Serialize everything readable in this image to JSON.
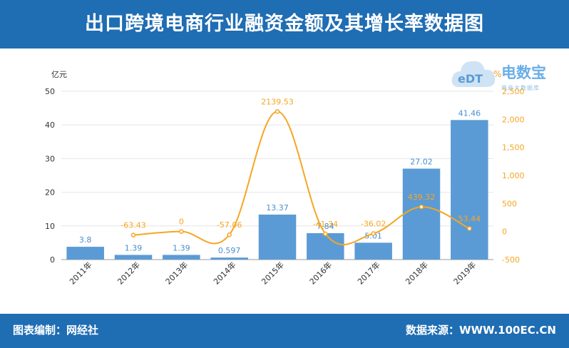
{
  "title": "出口跨境电商行业融资金额及其增长率数据图",
  "unit_left": "亿元",
  "unit_right": "%",
  "footer": {
    "left": "图表编制：网经社",
    "right": "数据来源：WWW.100EC.CN"
  },
  "logo": {
    "icon_text": "eDT",
    "brand": "电数宝",
    "tagline": "电商大数据库",
    "icon_name": "cloud-logo-icon"
  },
  "colors": {
    "header": "#1f6db3",
    "bar": "#5b9bd5",
    "line": "#f5a623"
  },
  "chart_data": {
    "type": "bar",
    "categories": [
      "2011年",
      "2012年",
      "2013年",
      "2014年",
      "2015年",
      "2016年",
      "2017年",
      "2018年",
      "2019年"
    ],
    "series": [
      {
        "values": [
          3.8,
          1.39,
          1.39,
          0.597,
          13.37,
          7.84,
          5.01,
          27.02,
          41.46
        ],
        "labels": [
          "3.8",
          "1.39",
          "1.39",
          "0.597",
          "13.37",
          "7.84",
          "5.01",
          "27.02",
          "41.46"
        ]
      },
      {
        "type": "line",
        "axis": "right",
        "values": [
          null,
          -63.43,
          0,
          -57.06,
          2139.53,
          -41.34,
          -36.02,
          439.32,
          53.44
        ],
        "labels": [
          "",
          "-63.43",
          "0",
          "-57.06",
          "2139.53",
          "-41.34",
          "-36.02",
          "439.32",
          "53.44"
        ]
      }
    ],
    "ylim": [
      0,
      50
    ],
    "yticks": [
      0,
      10,
      20,
      30,
      40,
      50
    ],
    "y2lim": [
      -500,
      2500
    ],
    "y2ticks": [
      "-500",
      "0",
      "500",
      "1,000",
      "1,500",
      "2,000",
      "2,500"
    ],
    "grid": true
  }
}
